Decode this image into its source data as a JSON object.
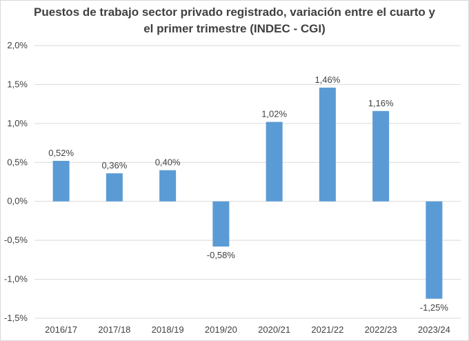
{
  "chart_data": {
    "type": "bar",
    "title_lines": [
      "Puestos de trabajo sector privado registrado, variación entre el cuarto y",
      "el primer trimestre (INDEC - CGI)"
    ],
    "categories": [
      "2016/17",
      "2017/18",
      "2018/19",
      "2019/20",
      "2020/21",
      "2021/22",
      "2022/23",
      "2023/24"
    ],
    "values": [
      0.52,
      0.36,
      0.4,
      -0.58,
      1.02,
      1.46,
      1.16,
      -1.25
    ],
    "data_labels": [
      "0,52%",
      "0,36%",
      "0,40%",
      "-0,58%",
      "1,02%",
      "1,46%",
      "1,16%",
      "-1,25%"
    ],
    "ylim": [
      -1.5,
      2.0
    ],
    "y_ticks": [
      2.0,
      1.5,
      1.0,
      0.5,
      0.0,
      -0.5,
      -1.0,
      -1.5
    ],
    "y_tick_labels": [
      "2,0%",
      "1,5%",
      "1,0%",
      "0,5%",
      "0,0%",
      "-0,5%",
      "-1,0%",
      "-1,5%"
    ],
    "grid": true,
    "bar_color": "#5b9bd5",
    "grid_color": "#d9d9d9"
  }
}
